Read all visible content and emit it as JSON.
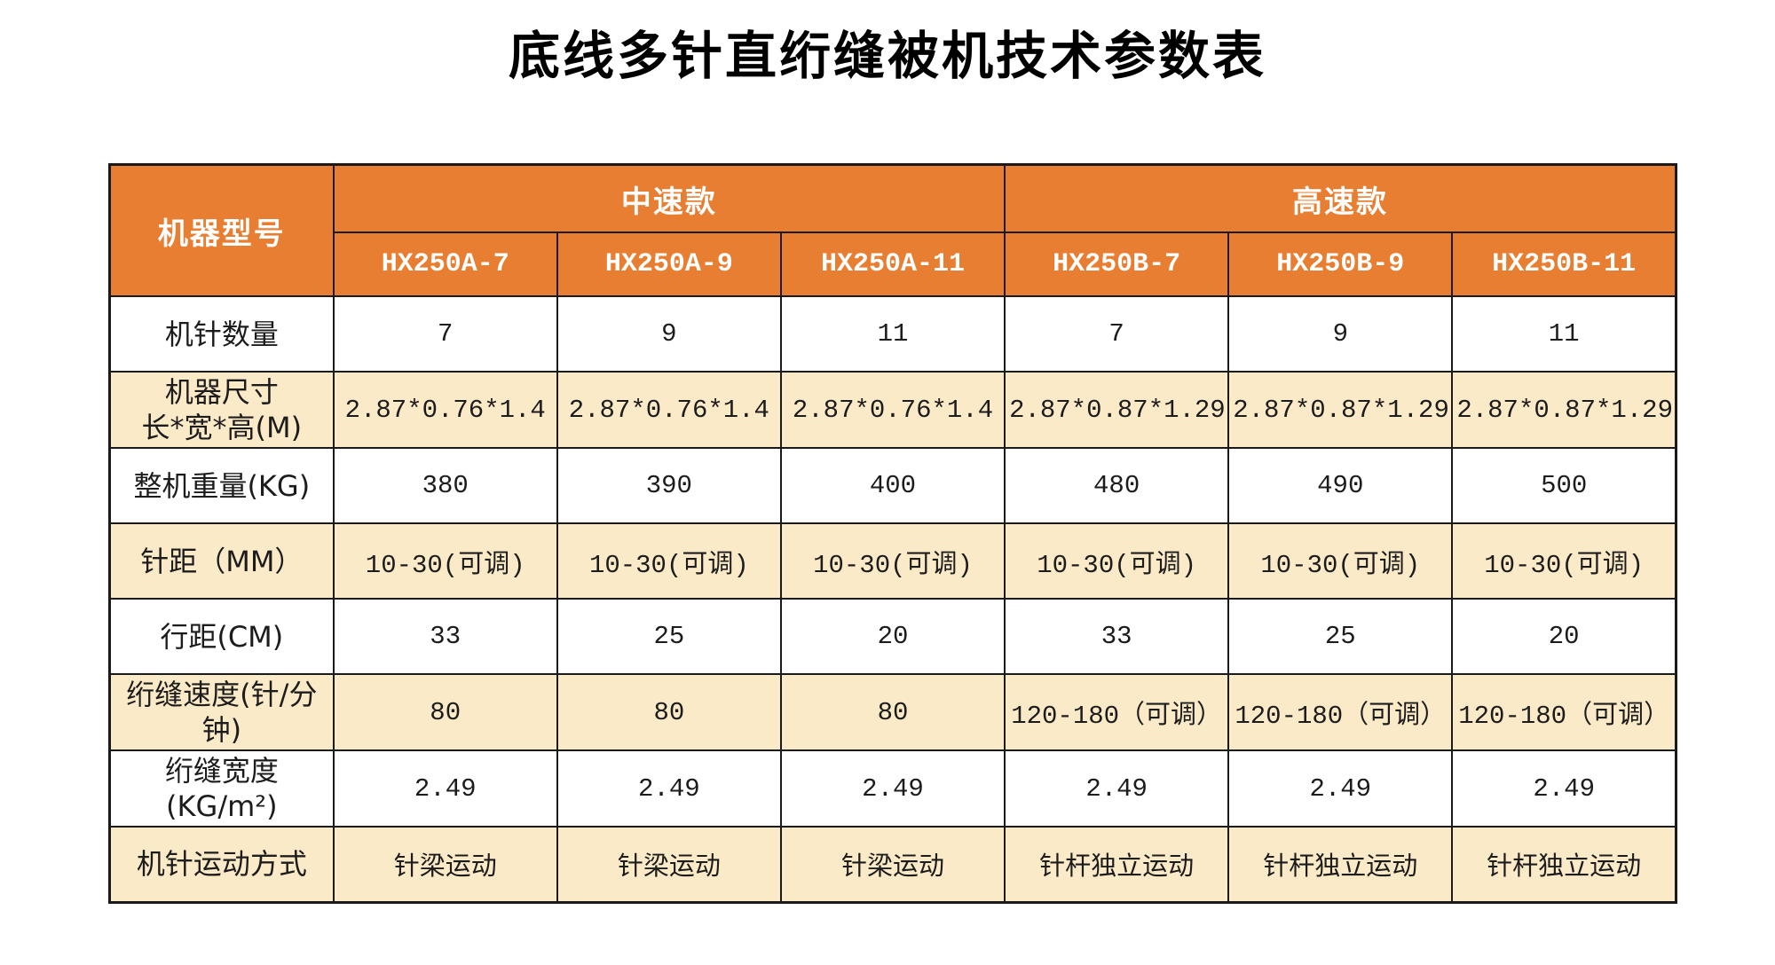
{
  "page": {
    "title": "底线多针直绗缝被机技术参数表"
  },
  "colors": {
    "header_bg": "#E87E31",
    "header_text": "#FFFFFF",
    "row_alt_bg": "#FBEAC8",
    "body_text": "#1C1C1C",
    "border": "#1A1A1A"
  },
  "table": {
    "corner_label": "机器型号",
    "groups": [
      {
        "label": "中速款"
      },
      {
        "label": "高速款"
      }
    ],
    "models": [
      "HX250A-7",
      "HX250A-9",
      "HX250A-11",
      "HX250B-7",
      "HX250B-9",
      "HX250B-11"
    ],
    "rows": [
      {
        "label": "机针数量",
        "values": [
          "7",
          "9",
          "11",
          "7",
          "9",
          "11"
        ]
      },
      {
        "label": "机器尺寸\n长*宽*高(M)",
        "values": [
          "2.87*0.76*1.4",
          "2.87*0.76*1.4",
          "2.87*0.76*1.4",
          "2.87*0.87*1.29",
          "2.87*0.87*1.29",
          "2.87*0.87*1.29"
        ]
      },
      {
        "label": "整机重量(KG)",
        "values": [
          "380",
          "390",
          "400",
          "480",
          "490",
          "500"
        ]
      },
      {
        "label": "针距（MM）",
        "values": [
          "10-30(可调)",
          "10-30(可调)",
          "10-30(可调)",
          "10-30(可调)",
          "10-30(可调)",
          "10-30(可调)"
        ]
      },
      {
        "label": "行距(CM)",
        "values": [
          "33",
          "25",
          "20",
          "33",
          "25",
          "20"
        ]
      },
      {
        "label": "绗缝速度(针/分钟)",
        "values": [
          "80",
          "80",
          "80",
          "120-180（可调）",
          "120-180（可调）",
          "120-180（可调）"
        ]
      },
      {
        "label": "绗缝宽度(KG/m²)",
        "values": [
          "2.49",
          "2.49",
          "2.49",
          "2.49",
          "2.49",
          "2.49"
        ]
      },
      {
        "label": "机针运动方式",
        "values": [
          "针梁运动",
          "针梁运动",
          "针梁运动",
          "针杆独立运动",
          "针杆独立运动",
          "针杆独立运动"
        ]
      }
    ]
  }
}
